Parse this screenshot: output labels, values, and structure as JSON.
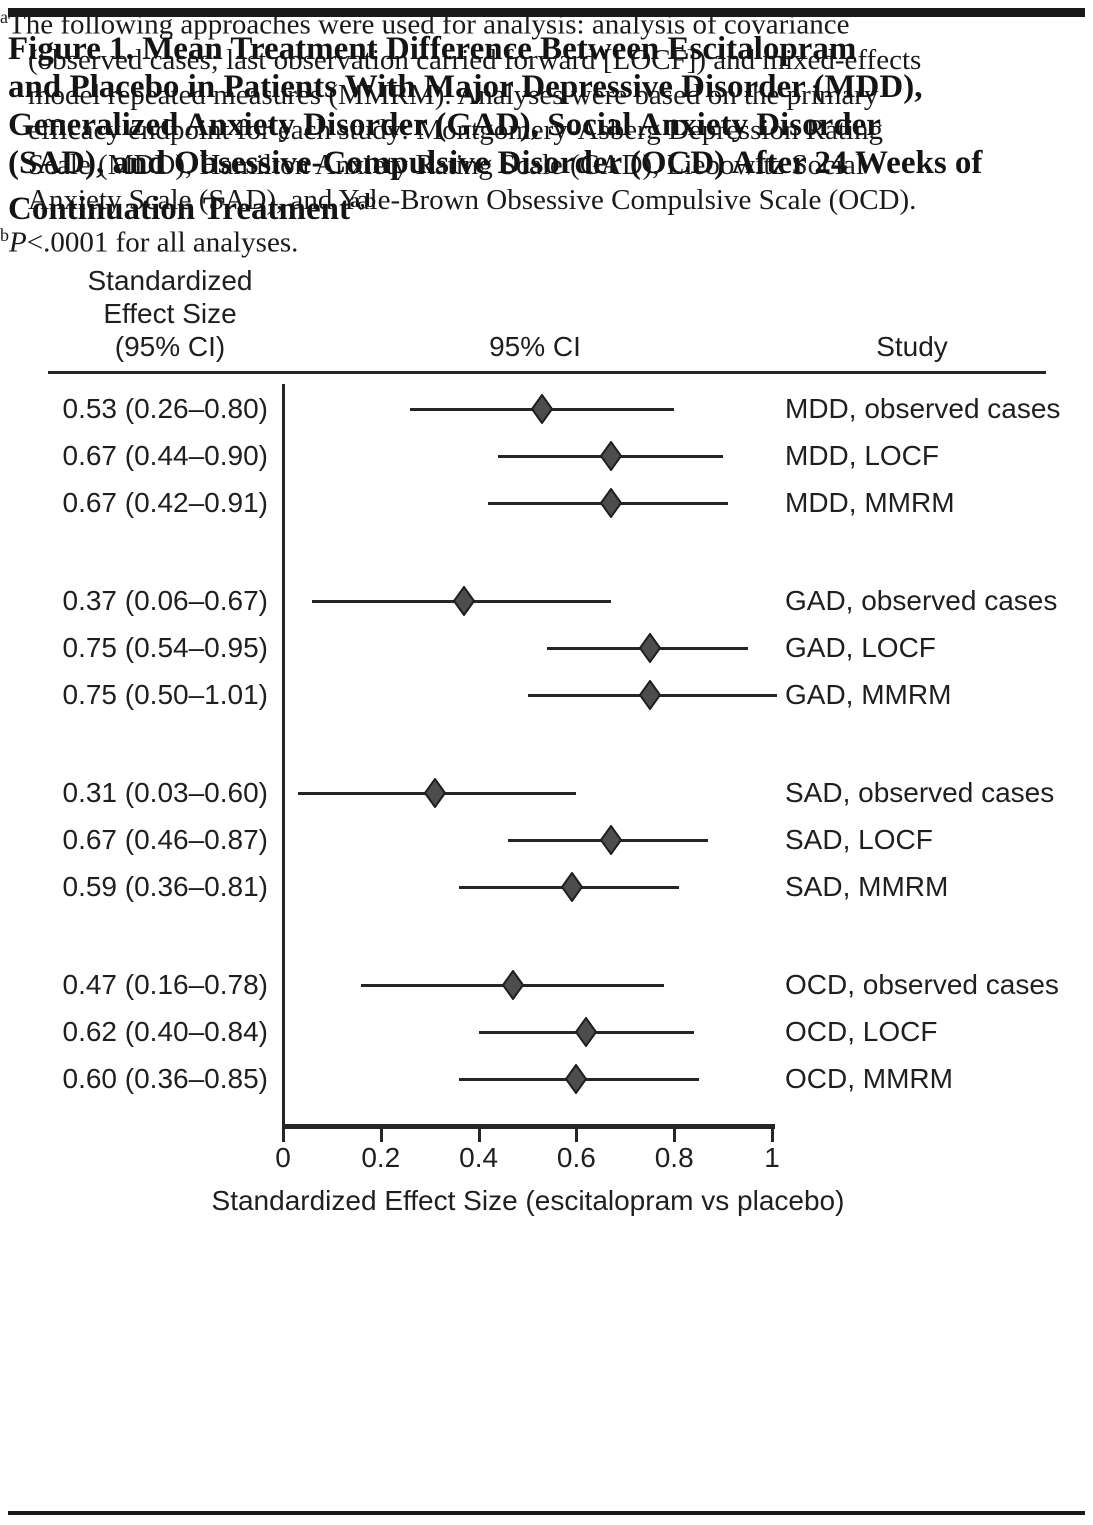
{
  "figure": {
    "title_lines": [
      "Figure 1. Mean Treatment Difference Between Escitalopram",
      "and Placebo in Patients With Major Depressive Disorder (MDD),",
      "Generalized Anxiety Disorder (GAD), Social Anxiety Disorder",
      "(SAD), and Obsessive-Compulsive Disorder (OCD) After 24 Weeks of",
      "Continuation Treatment"
    ],
    "title_superscript": "a,b"
  },
  "chart_data": {
    "type": "forest",
    "columns": {
      "left_header_lines": [
        "Standardized",
        "Effect Size",
        "(95% CI)"
      ],
      "center_header": "95% CI",
      "right_header": "Study"
    },
    "rows": [
      {
        "label": "0.53 (0.26–0.80)",
        "estimate": 0.53,
        "ci_low": 0.26,
        "ci_high": 0.8,
        "study": "MDD, observed cases"
      },
      {
        "label": "0.67 (0.44–0.90)",
        "estimate": 0.67,
        "ci_low": 0.44,
        "ci_high": 0.9,
        "study": "MDD, LOCF"
      },
      {
        "label": "0.67 (0.42–0.91)",
        "estimate": 0.67,
        "ci_low": 0.42,
        "ci_high": 0.91,
        "study": "MDD, MMRM"
      },
      {
        "label": "0.37 (0.06–0.67)",
        "estimate": 0.37,
        "ci_low": 0.06,
        "ci_high": 0.67,
        "study": "GAD, observed cases"
      },
      {
        "label": "0.75 (0.54–0.95)",
        "estimate": 0.75,
        "ci_low": 0.54,
        "ci_high": 0.95,
        "study": "GAD, LOCF"
      },
      {
        "label": "0.75 (0.50–1.01)",
        "estimate": 0.75,
        "ci_low": 0.5,
        "ci_high": 1.01,
        "study": "GAD, MMRM"
      },
      {
        "label": "0.31 (0.03–0.60)",
        "estimate": 0.31,
        "ci_low": 0.03,
        "ci_high": 0.6,
        "study": "SAD, observed cases"
      },
      {
        "label": "0.67 (0.46–0.87)",
        "estimate": 0.67,
        "ci_low": 0.46,
        "ci_high": 0.87,
        "study": "SAD, LOCF"
      },
      {
        "label": "0.59 (0.36–0.81)",
        "estimate": 0.59,
        "ci_low": 0.36,
        "ci_high": 0.81,
        "study": "SAD, MMRM"
      },
      {
        "label": "0.47 (0.16–0.78)",
        "estimate": 0.47,
        "ci_low": 0.16,
        "ci_high": 0.78,
        "study": "OCD, observed cases"
      },
      {
        "label": "0.62 (0.40–0.84)",
        "estimate": 0.62,
        "ci_low": 0.4,
        "ci_high": 0.84,
        "study": "OCD, LOCF"
      },
      {
        "label": "0.60 (0.36–0.85)",
        "estimate": 0.6,
        "ci_low": 0.36,
        "ci_high": 0.85,
        "study": "OCD, MMRM"
      }
    ],
    "x_axis": {
      "range": [
        0,
        1
      ],
      "ticks": [
        0,
        0.2,
        0.4,
        0.6,
        0.8,
        1
      ],
      "tick_labels": [
        "0",
        "0.2",
        "0.4",
        "0.6",
        "0.8",
        "1"
      ],
      "label": "Standardized Effect Size (escitalopram vs placebo)"
    },
    "marker_color": "#4d4d4d",
    "marker_stroke_color": "#1f1f1f",
    "line_color": "#262626"
  },
  "footnotes": {
    "a_marker": "a",
    "a_lines": [
      "The following approaches were used for analysis: analysis of covariance",
      "(observed cases; last observation carried forward [LOCF]) and mixed-effects",
      "model repeated measures (MMRM). Analyses were based on the primary",
      "efficacy endpoint for each study: Montgomery-Asberg Depression Rating",
      "Scale (MDD), Hamilton Anxiety Rating Scale (GAD), Liebowitz Social",
      "Anxiety Scale (SAD), and Yale-Brown Obsessive Compulsive Scale (OCD)."
    ],
    "b_marker": "b",
    "b_italic": "P",
    "b_text": "<.0001 for all analyses."
  }
}
